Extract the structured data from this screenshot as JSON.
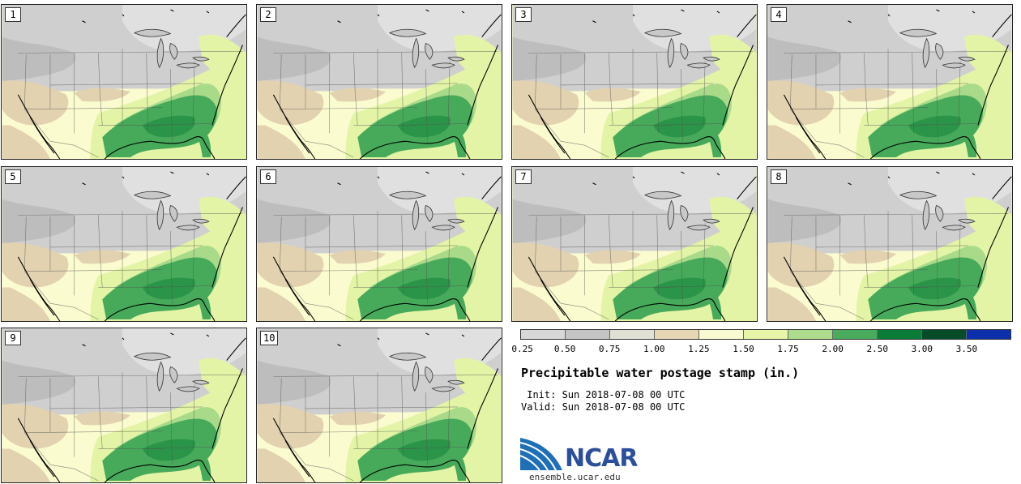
{
  "panels": [
    {
      "label": "1"
    },
    {
      "label": "2"
    },
    {
      "label": "3"
    },
    {
      "label": "4"
    },
    {
      "label": "5"
    },
    {
      "label": "6"
    },
    {
      "label": "7"
    },
    {
      "label": "8"
    },
    {
      "label": "9"
    },
    {
      "label": "10"
    }
  ],
  "legend": {
    "ticks": [
      "0.25",
      "0.50",
      "0.75",
      "1.00",
      "1.25",
      "1.50",
      "1.75",
      "2.00",
      "2.50",
      "3.00",
      "3.50"
    ],
    "colors": [
      "#d8d8d8",
      "#c4c4c4",
      "#e0e0d4",
      "#e6d6b4",
      "#fafad2",
      "#e6f5a8",
      "#acdc8c",
      "#48ac5c",
      "#0a7c38",
      "#064c28",
      "#0c30ac"
    ]
  },
  "title": "Precipitable water postage stamp (in.)",
  "init": " Init: Sun 2018-07-08 00 UTC",
  "valid": "Valid: Sun 2018-07-08 00 UTC",
  "logo": {
    "text": "NCAR",
    "site": "ensemble.ucar.edu"
  }
}
